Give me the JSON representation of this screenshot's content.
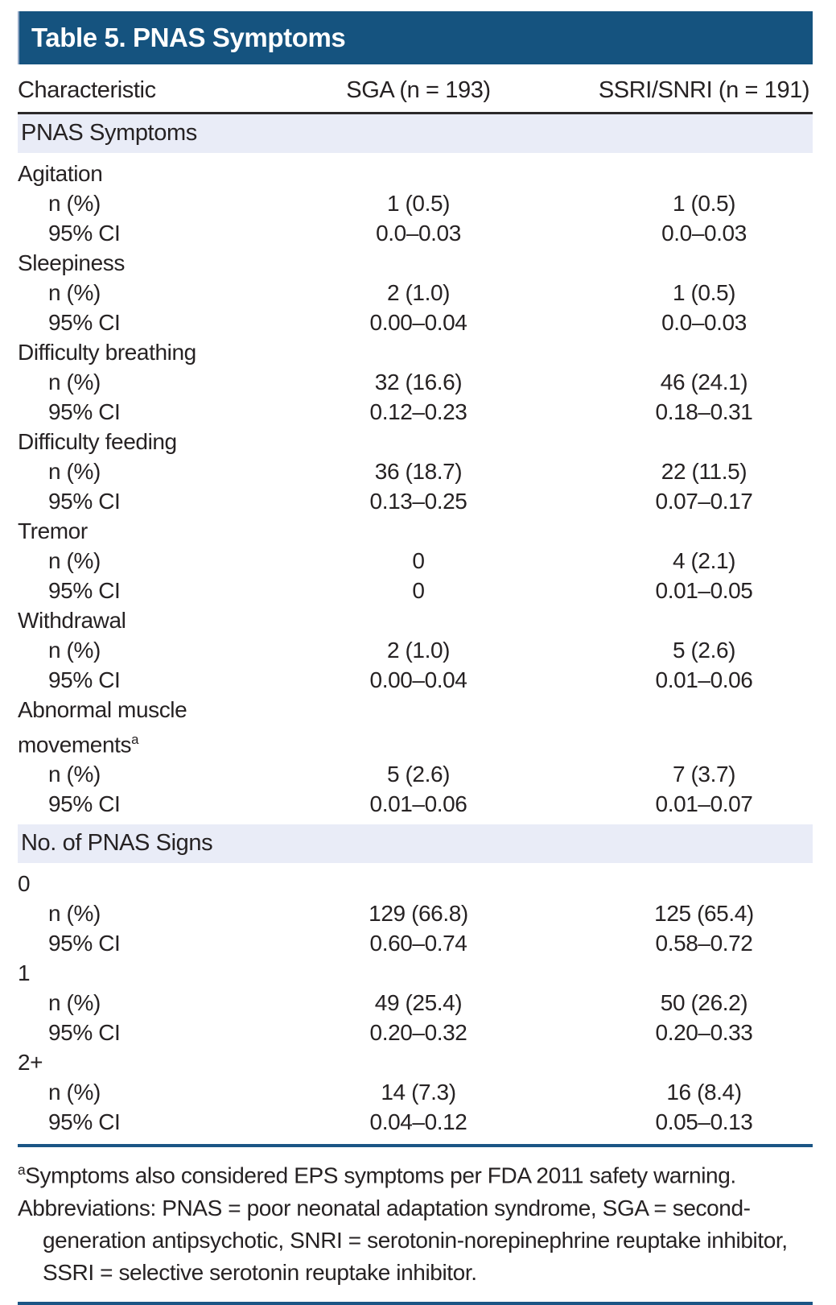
{
  "title": "Table 5. PNAS Symptoms",
  "columns": [
    "Characteristic",
    "SGA (n = 193)",
    "SSRI/SNRI (n = 191)"
  ],
  "sections": [
    {
      "header": "PNAS Symptoms",
      "groups": [
        {
          "label": "Agitation",
          "sup": "",
          "rows": [
            [
              "n (%)",
              "1 (0.5)",
              "1 (0.5)"
            ],
            [
              "95% CI",
              "0.0–0.03",
              "0.0–0.03"
            ]
          ]
        },
        {
          "label": "Sleepiness",
          "sup": "",
          "rows": [
            [
              "n (%)",
              "2 (1.0)",
              "1 (0.5)"
            ],
            [
              "95% CI",
              "0.00–0.04",
              "0.0–0.03"
            ]
          ]
        },
        {
          "label": "Difficulty breathing",
          "sup": "",
          "rows": [
            [
              "n (%)",
              "32 (16.6)",
              "46 (24.1)"
            ],
            [
              "95% CI",
              "0.12–0.23",
              "0.18–0.31"
            ]
          ]
        },
        {
          "label": "Difficulty feeding",
          "sup": "",
          "rows": [
            [
              "n (%)",
              "36 (18.7)",
              "22 (11.5)"
            ],
            [
              "95% CI",
              "0.13–0.25",
              "0.07–0.17"
            ]
          ]
        },
        {
          "label": "Tremor",
          "sup": "",
          "rows": [
            [
              "n (%)",
              "0",
              "4 (2.1)"
            ],
            [
              "95% CI",
              "0",
              "0.01–0.05"
            ]
          ]
        },
        {
          "label": "Withdrawal",
          "sup": "",
          "rows": [
            [
              "n (%)",
              "2 (1.0)",
              "5 (2.6)"
            ],
            [
              "95% CI",
              "0.00–0.04",
              "0.01–0.06"
            ]
          ]
        },
        {
          "label": "Abnormal muscle movements",
          "sup": "a",
          "rows": [
            [
              "n (%)",
              "5 (2.6)",
              "7 (3.7)"
            ],
            [
              "95% CI",
              "0.01–0.06",
              "0.01–0.07"
            ]
          ]
        }
      ]
    },
    {
      "header": "No. of PNAS Signs",
      "groups": [
        {
          "label": "0",
          "sup": "",
          "rows": [
            [
              "n (%)",
              "129 (66.8)",
              "125 (65.4)"
            ],
            [
              "95% CI",
              "0.60–0.74",
              "0.58–0.72"
            ]
          ]
        },
        {
          "label": "1",
          "sup": "",
          "rows": [
            [
              "n (%)",
              "49 (25.4)",
              "50 (26.2)"
            ],
            [
              "95% CI",
              "0.20–0.32",
              "0.20–0.33"
            ]
          ]
        },
        {
          "label": "2+",
          "sup": "",
          "rows": [
            [
              "n (%)",
              "14 (7.3)",
              "16 (8.4)"
            ],
            [
              "95% CI",
              "0.04–0.12",
              "0.05–0.13"
            ]
          ]
        }
      ]
    }
  ],
  "footnotes": {
    "note_a_sup": "a",
    "note_a": "Symptoms also considered EPS symptoms per FDA 2011 safety warning.",
    "abbreviations": "Abbreviations: PNAS = poor neonatal adaptation syndrome, SGA = second-generation antipsychotic, SNRI = serotonin-norepinephrine reuptake inhibitor, SSRI = selective serotonin reuptake inhibitor."
  },
  "colors": {
    "header_bar": "#15537F",
    "section_band": "#E9ECF7",
    "text": "#262223",
    "rule_navy": "#1B5585",
    "head_rule": "#2B292A"
  }
}
